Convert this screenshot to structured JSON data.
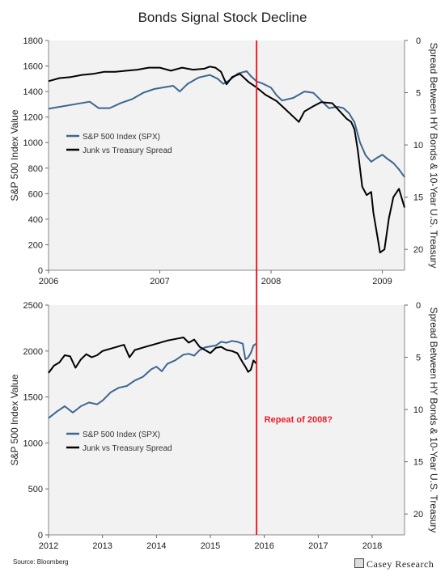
{
  "title": "Bonds Signal Stock Decline",
  "source": "Source: Bloomberg",
  "logo_text": "Casey Research",
  "colors": {
    "spx": "#3c6690",
    "spread": "#000000",
    "marker": "#e8202a",
    "annotation": "#e8202a",
    "plot_bg": "#f2f2f2"
  },
  "chart_data": [
    {
      "type": "line",
      "title": "",
      "xlabel": "",
      "ylabel": "S&P 500 Index Value",
      "y2label": "Spread Between HY Bonds & 10-Year U.S. Treasury",
      "x_range": [
        2006.0,
        2009.2
      ],
      "ylim": [
        0,
        1800
      ],
      "y2lim": [
        0,
        22
      ],
      "y2_inverted": true,
      "xticks": [
        2006,
        2007,
        2008,
        2009
      ],
      "xtick_labels": [
        "2006",
        "2007",
        "2008",
        "2009"
      ],
      "yticks": [
        0,
        200,
        400,
        600,
        800,
        1000,
        1200,
        1400,
        1600,
        1800
      ],
      "y2ticks": [
        0,
        5,
        10,
        15,
        20
      ],
      "legend_position": "middle-left",
      "marker_x": 2007.87,
      "series": [
        {
          "name": "S&P 500 Index (SPX)",
          "axis": "left",
          "x": [
            2006.0,
            2006.1,
            2006.2,
            2006.3,
            2006.37,
            2006.45,
            2006.55,
            2006.65,
            2006.75,
            2006.85,
            2006.95,
            2007.05,
            2007.12,
            2007.18,
            2007.25,
            2007.35,
            2007.45,
            2007.52,
            2007.57,
            2007.63,
            2007.7,
            2007.78,
            2007.82,
            2007.87,
            2007.93,
            2008.0,
            2008.05,
            2008.1,
            2008.2,
            2008.3,
            2008.38,
            2008.45,
            2008.52,
            2008.6,
            2008.65,
            2008.7,
            2008.75,
            2008.8,
            2008.85,
            2008.9,
            2008.95,
            2009.0,
            2009.05,
            2009.1,
            2009.15,
            2009.2
          ],
          "y": [
            1265,
            1280,
            1295,
            1310,
            1320,
            1270,
            1270,
            1310,
            1340,
            1390,
            1420,
            1435,
            1445,
            1400,
            1460,
            1510,
            1530,
            1500,
            1460,
            1490,
            1540,
            1560,
            1520,
            1480,
            1460,
            1430,
            1370,
            1330,
            1350,
            1400,
            1390,
            1330,
            1270,
            1280,
            1270,
            1230,
            1160,
            1000,
            900,
            850,
            880,
            905,
            870,
            840,
            790,
            730
          ]
        },
        {
          "name": "Junk vs Treasury Spread",
          "axis": "right",
          "x": [
            2006.0,
            2006.1,
            2006.2,
            2006.3,
            2006.4,
            2006.5,
            2006.6,
            2006.7,
            2006.8,
            2006.9,
            2007.0,
            2007.1,
            2007.2,
            2007.3,
            2007.4,
            2007.45,
            2007.5,
            2007.55,
            2007.6,
            2007.65,
            2007.72,
            2007.8,
            2007.87,
            2007.95,
            2008.05,
            2008.12,
            2008.2,
            2008.25,
            2008.3,
            2008.38,
            2008.45,
            2008.55,
            2008.62,
            2008.68,
            2008.72,
            2008.75,
            2008.78,
            2008.82,
            2008.86,
            2008.9,
            2008.92,
            2008.96,
            2008.98,
            2009.02,
            2009.06,
            2009.1,
            2009.15,
            2009.2
          ],
          "y": [
            3.9,
            3.6,
            3.5,
            3.3,
            3.2,
            3.0,
            3.0,
            2.9,
            2.8,
            2.6,
            2.6,
            2.9,
            2.6,
            2.8,
            2.7,
            2.5,
            2.6,
            3.0,
            4.2,
            3.5,
            3.2,
            4.0,
            4.5,
            5.2,
            5.8,
            6.5,
            7.3,
            7.8,
            6.8,
            6.3,
            5.9,
            6.0,
            6.8,
            7.5,
            7.8,
            8.5,
            10.5,
            14.0,
            14.8,
            14.5,
            16.5,
            19.0,
            20.3,
            20.0,
            17.0,
            15.0,
            14.2,
            16.0
          ]
        }
      ]
    },
    {
      "type": "line",
      "title": "",
      "xlabel": "",
      "ylabel": "S&P 500 Index Value",
      "y2label": "Spread Between HY Bonds & 10-Year U.S. Treasury",
      "x_range": [
        2012.0,
        2018.6
      ],
      "ylim": [
        0,
        2500
      ],
      "y2lim": [
        0,
        22
      ],
      "y2_inverted": true,
      "xticks": [
        2012,
        2013,
        2014,
        2015,
        2016,
        2017,
        2018
      ],
      "xtick_labels": [
        "2012",
        "2013",
        "2014",
        "2015",
        "2016",
        "2017",
        "2018"
      ],
      "yticks": [
        0,
        500,
        1000,
        1500,
        2000,
        2500
      ],
      "y2ticks": [
        0,
        5,
        10,
        15,
        20
      ],
      "legend_position": "middle-left",
      "marker_x": 2015.88,
      "annotation": "Repeat of 2008?",
      "series": [
        {
          "name": "S&P 500 Index (SPX)",
          "axis": "left",
          "x": [
            2012.0,
            2012.15,
            2012.3,
            2012.45,
            2012.6,
            2012.75,
            2012.9,
            2013.0,
            2013.15,
            2013.3,
            2013.45,
            2013.6,
            2013.75,
            2013.9,
            2014.0,
            2014.1,
            2014.2,
            2014.35,
            2014.5,
            2014.6,
            2014.7,
            2014.8,
            2014.9,
            2015.0,
            2015.1,
            2015.2,
            2015.3,
            2015.4,
            2015.5,
            2015.6,
            2015.65,
            2015.7,
            2015.75,
            2015.8,
            2015.85
          ],
          "y": [
            1270,
            1340,
            1400,
            1330,
            1400,
            1440,
            1420,
            1460,
            1550,
            1600,
            1620,
            1680,
            1720,
            1800,
            1830,
            1780,
            1860,
            1900,
            1960,
            1970,
            1950,
            2010,
            2040,
            2050,
            2060,
            2100,
            2090,
            2110,
            2100,
            2080,
            1910,
            1930,
            1980,
            2060,
            2080
          ]
        },
        {
          "name": "Junk vs Treasury Spread",
          "axis": "right",
          "x": [
            2012.0,
            2012.1,
            2012.2,
            2012.3,
            2012.4,
            2012.5,
            2012.6,
            2012.7,
            2012.8,
            2012.9,
            2013.0,
            2013.2,
            2013.4,
            2013.5,
            2013.6,
            2013.8,
            2014.0,
            2014.2,
            2014.4,
            2014.5,
            2014.6,
            2014.7,
            2014.8,
            2014.9,
            2015.0,
            2015.1,
            2015.2,
            2015.3,
            2015.4,
            2015.5,
            2015.6,
            2015.65,
            2015.7,
            2015.75,
            2015.8,
            2015.85
          ],
          "y": [
            6.5,
            5.8,
            5.5,
            4.8,
            4.9,
            6.0,
            5.2,
            4.7,
            5.0,
            4.8,
            4.4,
            4.1,
            3.8,
            5.0,
            4.3,
            4.0,
            3.7,
            3.4,
            3.2,
            3.1,
            3.6,
            3.3,
            4.0,
            4.3,
            4.6,
            4.1,
            4.0,
            4.3,
            4.4,
            4.6,
            5.5,
            5.9,
            6.4,
            6.2,
            5.3,
            5.6
          ]
        }
      ]
    }
  ]
}
